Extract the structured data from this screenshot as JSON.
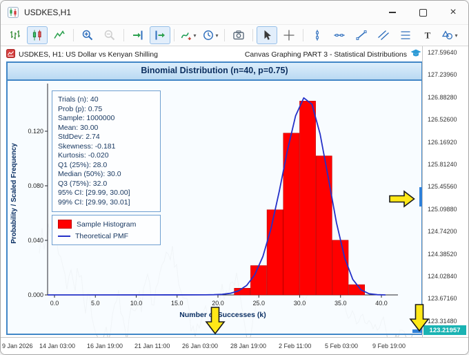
{
  "titlebar": {
    "title": "USDKES,H1"
  },
  "toolbar": {
    "buttons": [
      {
        "name": "bar-chart"
      },
      {
        "name": "candlestick-chart",
        "selected": true
      },
      {
        "name": "line-chart"
      },
      {
        "separator": true
      },
      {
        "name": "zoom-in"
      },
      {
        "name": "zoom-out",
        "disabled": true
      },
      {
        "separator": true
      },
      {
        "name": "auto-scroll"
      },
      {
        "name": "chart-shift",
        "selected": true
      },
      {
        "separator": true
      },
      {
        "name": "indicators",
        "dropdown": true
      },
      {
        "name": "timeframes",
        "dropdown": true
      },
      {
        "separator": true
      },
      {
        "name": "camera"
      },
      {
        "separator": true
      },
      {
        "name": "pointer",
        "selected": true
      },
      {
        "name": "crosshair"
      },
      {
        "separator": true
      },
      {
        "name": "vertical-line"
      },
      {
        "name": "horizontal-line"
      },
      {
        "name": "trendline"
      },
      {
        "name": "channel"
      },
      {
        "name": "equidistant-channel"
      },
      {
        "name": "text-tool"
      },
      {
        "name": "shapes",
        "dropdown": true
      }
    ]
  },
  "chart": {
    "symbol_info": "USDKES, H1: US Dollar vs Kenyan Shilling",
    "script_info": "Canvas Graphing PART 3 - Statistical Distributions",
    "price_scale": [
      "127.59640",
      "127.23960",
      "126.88280",
      "126.52600",
      "126.16920",
      "125.81240",
      "125.45560",
      "125.09880",
      "124.74200",
      "124.38520",
      "124.02840",
      "123.67160",
      "123.31480"
    ],
    "current_price": "123.21957",
    "time_scale": [
      "9 Jan 2026",
      "14 Jan 03:00",
      "16 Jan 19:00",
      "21 Jan 11:00",
      "26 Jan 03:00",
      "28 Jan 19:00",
      "2 Feb 11:00",
      "5 Feb 03:00",
      "9 Feb 19:00"
    ]
  },
  "overlay": {
    "title": "Binomial Distribution (n=40, p=0.75)",
    "stats": [
      "Trials (n): 40",
      "Prob (p): 0.75",
      "Sample: 1000000",
      "Mean: 30.00",
      "StdDev: 2.74",
      "Skewness: -0.181",
      "Kurtosis: -0.020",
      "Q1 (25%): 28.0",
      "Median (50%): 30.0",
      "Q3 (75%): 32.0",
      "95% CI: [29.99, 30.00]",
      "99% CI: [29.99, 30.01]"
    ],
    "legend": [
      {
        "label": "Sample Histogram",
        "color": "#ff0000",
        "type": "box"
      },
      {
        "label": "Theoretical PMF",
        "color": "#2430c8",
        "type": "line"
      }
    ]
  },
  "chart_data": {
    "type": "histogram+line",
    "title": "Binomial Distribution (n=40, p=0.75)",
    "xlabel": "Number of Successes (k)",
    "ylabel": "Probability / Scaled Frequency",
    "xlim": [
      -1,
      41.8
    ],
    "ylim": [
      0,
      0.152
    ],
    "x_ticks": [
      "0.0",
      "5.0",
      "10.0",
      "15.0",
      "20.0",
      "25.0",
      "30.0",
      "35.0",
      "40.0"
    ],
    "y_ticks": [
      "0.000",
      "0.040",
      "0.080",
      "0.120"
    ],
    "legend_position": "upper-left",
    "grid": false,
    "series": [
      {
        "name": "Sample Histogram",
        "type": "bar",
        "color": "#ff0000",
        "bin_width": 2,
        "bin_starts": [
          22,
          24,
          26,
          28,
          30,
          32,
          34,
          36
        ],
        "heights": [
          0.0049,
          0.0215,
          0.0624,
          0.1186,
          0.1421,
          0.1019,
          0.0401,
          0.0075
        ]
      },
      {
        "name": "Theoretical PMF",
        "type": "line",
        "color": "#2430c8",
        "x": [
          18,
          19,
          20,
          21,
          22,
          23,
          24,
          25,
          26,
          27,
          28,
          29,
          30,
          31,
          32,
          33,
          34,
          35,
          36,
          37,
          38,
          39,
          40
        ],
        "y": [
          4e-05,
          0.00013,
          0.0004,
          0.00114,
          0.00294,
          0.00691,
          0.01469,
          0.02821,
          0.04883,
          0.07596,
          0.1058,
          0.13134,
          0.14447,
          0.13981,
          0.11797,
          0.0858,
          0.05299,
          0.02725,
          0.01136,
          0.00368,
          0.00087,
          0.00013,
          1e-05
        ]
      }
    ]
  }
}
